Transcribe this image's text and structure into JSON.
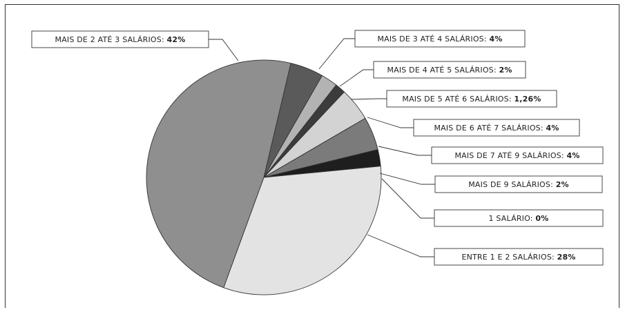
{
  "chart_data": {
    "type": "pie",
    "title": "",
    "slices": [
      {
        "label": "MAIS DE 3 ATÉ 4 SALÁRIOS: ",
        "value_text": "4%",
        "value": 4,
        "color": "#5a5a5a"
      },
      {
        "label": "MAIS DE 4 ATÉ 5 SALÁRIOS: ",
        "value_text": "2%",
        "value": 2,
        "color": "#b3b3b3"
      },
      {
        "label": "MAIS DE 5 ATÉ 6 SALÁRIOS: ",
        "value_text": "1,26%",
        "value": 1.26,
        "color": "#3c3c3c"
      },
      {
        "label": "MAIS DE 6 ATÉ 7 SALÁRIOS: ",
        "value_text": "4%",
        "value": 4,
        "color": "#d3d3d3"
      },
      {
        "label": "MAIS DE 7 ATÉ 9 SALÁRIOS: ",
        "value_text": "4%",
        "value": 4,
        "color": "#7b7b7b"
      },
      {
        "label": "MAIS DE 9 SALÁRIOS: ",
        "value_text": "2%",
        "value": 2,
        "color": "#1e1e1e"
      },
      {
        "label": "1 SALÁRIO: ",
        "value_text": "0%",
        "value": 0,
        "color": "#ffffff"
      },
      {
        "label": "ENTRE 1 E 2 SALÁRIOS: ",
        "value_text": "28%",
        "value": 28,
        "color": "#e3e3e3"
      },
      {
        "label": "MAIS DE 2 ATÉ 3 SALÁRIOS: ",
        "value_text": "42%",
        "value": 42,
        "color": "#8f8f8f"
      }
    ]
  }
}
